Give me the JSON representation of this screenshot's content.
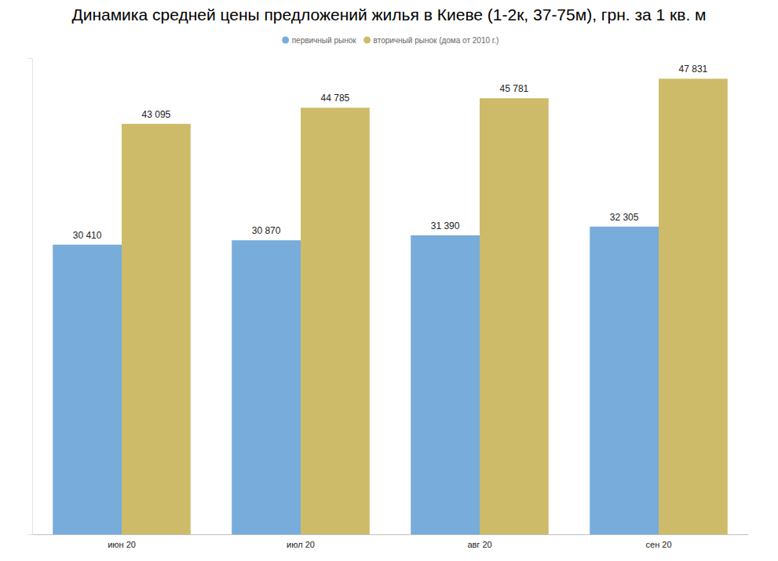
{
  "chart_data": {
    "type": "bar",
    "title": "Динамика средней цены предложений жилья в Киеве (1-2к, 37-75м), грн. за 1 кв. м",
    "categories": [
      "июн 20",
      "июл 20",
      "авг 20",
      "сен 20"
    ],
    "series": [
      {
        "name": "первичный рынок",
        "color": "#77acdb",
        "values": [
          30410,
          30870,
          31390,
          32305
        ],
        "value_labels": [
          "30 410",
          "30 870",
          "31 390",
          "32 305"
        ]
      },
      {
        "name": "вторичный рынок (дома от 2010 г.)",
        "color": "#cdbb6a",
        "values": [
          43095,
          44785,
          45781,
          47831
        ],
        "value_labels": [
          "43 095",
          "44 785",
          "45 781",
          "47 831"
        ]
      }
    ],
    "ylim": [
      0,
      50000
    ],
    "grid": false,
    "legend": "top",
    "data_labels": true,
    "tick_labels": "x"
  }
}
